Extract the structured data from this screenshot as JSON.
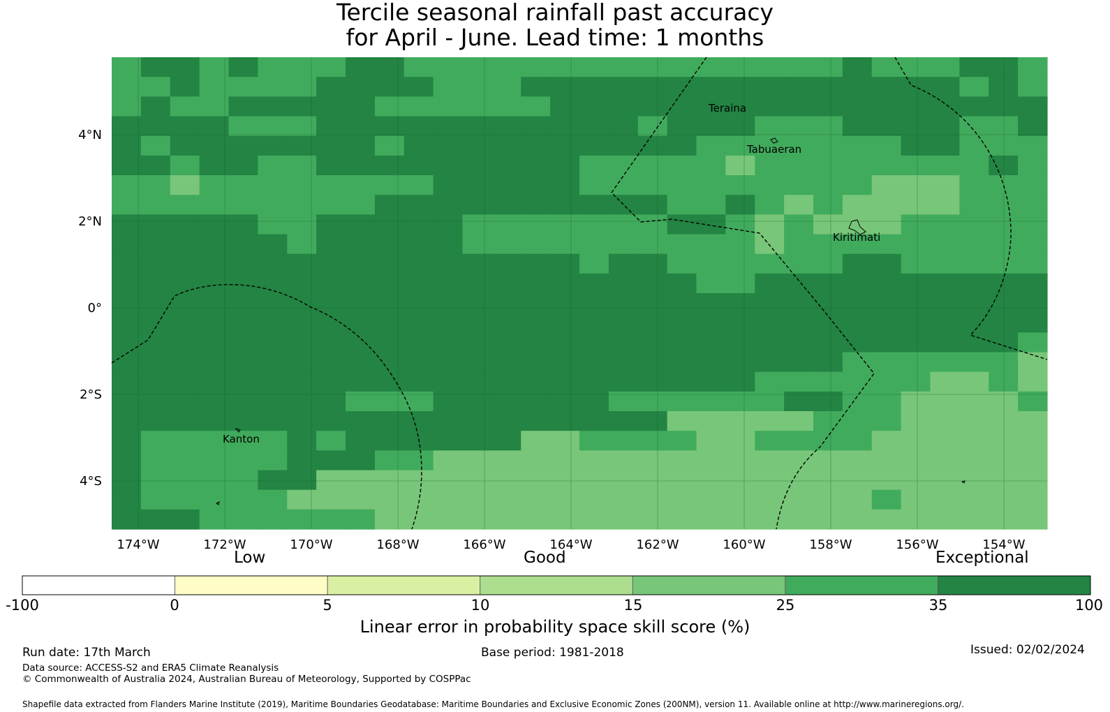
{
  "title": {
    "line1": "Tercile seasonal rainfall past accuracy",
    "line2": "for April - June. Lead time: 1 months"
  },
  "map": {
    "lat_labels": [
      "4°N",
      "2°N",
      "0°",
      "2°S",
      "4°S"
    ],
    "lon_labels": [
      "174°W",
      "172°W",
      "170°W",
      "168°W",
      "166°W",
      "164°W",
      "162°W",
      "160°W",
      "158°W",
      "156°W",
      "154°W"
    ],
    "place_labels": [
      "Teraina",
      "Tabuaeran",
      "Kiritimati",
      "Kanton"
    ],
    "grid_rows": [
      "56656555665555555555555556555665",
      "55655556666555666666666666666565",
      "56556666655555566666666666666666",
      "66665556666666666656665556666556",
      "65666666656666666666555555566555",
      "66566556666666665555545555555565",
      "55455555555666665555555555444555",
      "55555555566666666665565454444555",
      "66666556666655555556654544455555",
      "66666656666655555555554555555555",
      "66666666666666665665555556655555",
      "66666666666666666666556666666666",
      "66666666666666666666666666666666",
      "66666666666666666666666666666666",
      "66666666666666666666666666666665",
      "66666666666666666666666665555554",
      "66666666666666666666665555554454",
      "66666666555666666555555665544445",
      "66666666666666666664444455544444",
      "65555565666666445555445555444444",
      "65555566655444444444444444444444",
      "65555664444444444444444444444444",
      "65555544444444444444444444544444",
      "66655555544444444444444444444444"
    ]
  },
  "colorbar": {
    "categories": [
      "Low",
      "Good",
      "Exceptional"
    ],
    "ticks": [
      "-100",
      "0",
      "5",
      "10",
      "15",
      "25",
      "35",
      "100"
    ],
    "colors": [
      "#ffffff",
      "#fefdc6",
      "#d9f0a3",
      "#addd8e",
      "#78c679",
      "#41ab5d",
      "#238443"
    ],
    "label": "Linear error in probability space skill score (%)"
  },
  "footer": {
    "run_date": "Run date: 17th March",
    "base_period": "Base period: 1981-2018",
    "issued": "Issued: 02/02/2024",
    "data_source": "Data source: ACCESS-S2 and ERA5 Climate Reanalysis",
    "copyright": "© Commonwealth of Australia 2024, Australian Bureau of Meteorology, Supported by COSPPac",
    "shapefile": "Shapefile data extracted from Flanders Marine Institute (2019), Maritime Boundaries Geodatabase: Maritime Boundaries and Exclusive Economic Zones (200NM), version 11. Available online at http://www.marineregions.org/."
  }
}
